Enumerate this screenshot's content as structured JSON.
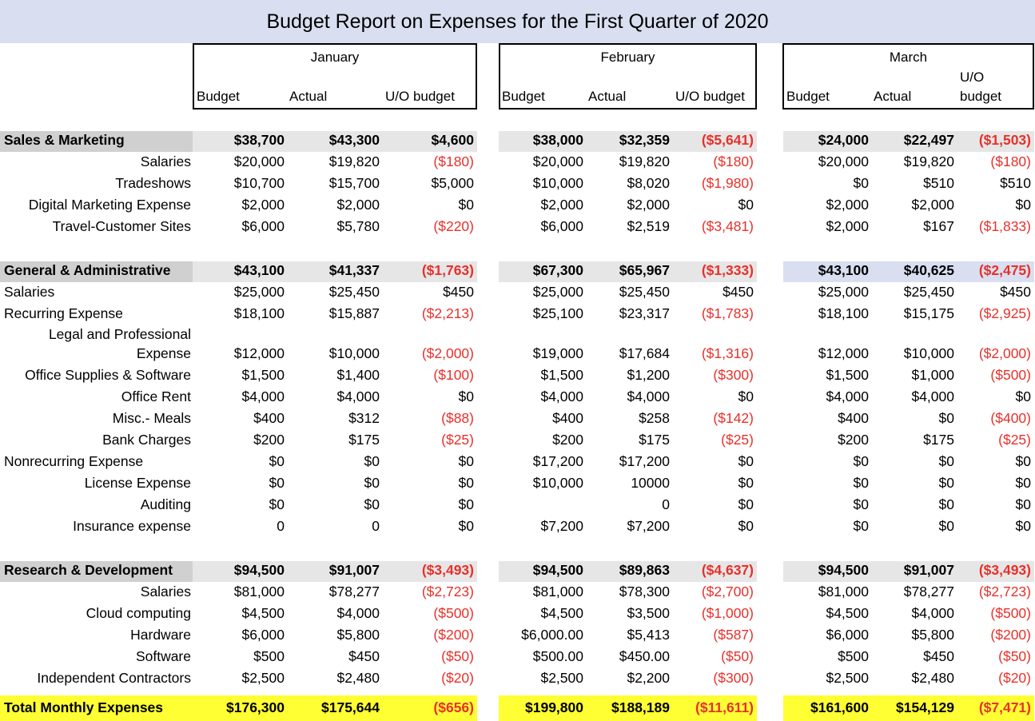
{
  "title": "Budget Report on Expenses for the First Quarter of 2020",
  "colors": {
    "header_bg": "#d9dff0",
    "category_bg": "#e6e6e6",
    "category_label_bg": "#d0d0d0",
    "total_bg": "#ffff33",
    "negative": "#e8302a"
  },
  "months": [
    {
      "name": "January",
      "col_budget": "Budget",
      "col_actual": "Actual",
      "col_uo": "U/O budget"
    },
    {
      "name": "February",
      "col_budget": "Budget",
      "col_actual": "Actual",
      "col_uo": "U/O budget"
    },
    {
      "name": "March",
      "col_budget": "Budget",
      "col_actual": "Actual",
      "col_uo_line1": "U/O",
      "col_uo_line2": "budget"
    }
  ],
  "rows": [
    {
      "label": "Sales & Marketing",
      "type": "category",
      "values": [
        "$38,700",
        "$43,300",
        "$4,600",
        "$38,000",
        "$32,359",
        "($5,641)",
        "$24,000",
        "$22,497",
        "($1,503)"
      ]
    },
    {
      "label": "Salaries",
      "type": "sub",
      "values": [
        "$20,000",
        "$19,820",
        "($180)",
        "$20,000",
        "$19,820",
        "($180)",
        "$20,000",
        "$19,820",
        "($180)"
      ]
    },
    {
      "label": "Tradeshows",
      "type": "sub",
      "values": [
        "$10,700",
        "$15,700",
        "$5,000",
        "$10,000",
        "$8,020",
        "($1,980)",
        "$0",
        "$510",
        "$510"
      ]
    },
    {
      "label": "Digital Marketing Expense",
      "type": "sub",
      "values": [
        "$2,000",
        "$2,000",
        "$0",
        "$2,000",
        "$2,000",
        "$0",
        "$2,000",
        "$2,000",
        "$0"
      ]
    },
    {
      "label": "Travel-Customer Sites",
      "type": "sub",
      "values": [
        "$6,000",
        "$5,780",
        "($220)",
        "$6,000",
        "$2,519",
        "($3,481)",
        "$2,000",
        "$167",
        "($1,833)"
      ]
    },
    {
      "label": "General & Administrative",
      "type": "category",
      "values": [
        "$43,100",
        "$41,337",
        "($1,763)",
        "$67,300",
        "$65,967",
        "($1,333)",
        "$43,100",
        "$40,625",
        "($2,475)"
      ]
    },
    {
      "label": "Salaries",
      "type": "left",
      "values": [
        "$25,000",
        "$25,450",
        "$450",
        "$25,000",
        "$25,450",
        "$450",
        "$25,000",
        "$25,450",
        "$450"
      ]
    },
    {
      "label": "Recurring Expense",
      "type": "left",
      "values": [
        "$18,100",
        "$15,887",
        "($2,213)",
        "$25,100",
        "$23,317",
        "($1,783)",
        "$18,100",
        "$15,175",
        "($2,925)"
      ]
    },
    {
      "label": "Legal and Professional",
      "label2": "Expense",
      "type": "sub2",
      "values": [
        "$12,000",
        "$10,000",
        "($2,000)",
        "$19,000",
        "$17,684",
        "($1,316)",
        "$12,000",
        "$10,000",
        "($2,000)"
      ]
    },
    {
      "label": "Office Supplies & Software",
      "type": "sub",
      "values": [
        "$1,500",
        "$1,400",
        "($100)",
        "$1,500",
        "$1,200",
        "($300)",
        "$1,500",
        "$1,000",
        "($500)"
      ]
    },
    {
      "label": "Office Rent",
      "type": "sub",
      "values": [
        "$4,000",
        "$4,000",
        "$0",
        "$4,000",
        "$4,000",
        "$0",
        "$4,000",
        "$4,000",
        "$0"
      ]
    },
    {
      "label": "Misc.- Meals",
      "type": "sub",
      "values": [
        "$400",
        "$312",
        "($88)",
        "$400",
        "$258",
        "($142)",
        "$400",
        "$0",
        "($400)"
      ]
    },
    {
      "label": "Bank Charges",
      "type": "sub",
      "values": [
        "$200",
        "$175",
        "($25)",
        "$200",
        "$175",
        "($25)",
        "$200",
        "$175",
        "($25)"
      ]
    },
    {
      "label": "Nonrecurring Expense",
      "type": "left",
      "values": [
        "$0",
        "$0",
        "$0",
        "$17,200",
        "$17,200",
        "$0",
        "$0",
        "$0",
        "$0"
      ]
    },
    {
      "label": "License Expense",
      "type": "sub",
      "values": [
        "$0",
        "$0",
        "$0",
        "$10,000",
        "10000",
        "$0",
        "$0",
        "$0",
        "$0"
      ]
    },
    {
      "label": "Auditing",
      "type": "sub",
      "values": [
        "$0",
        "$0",
        "$0",
        "",
        "0",
        "$0",
        "$0",
        "$0",
        "$0"
      ]
    },
    {
      "label": "Insurance expense",
      "type": "sub",
      "values": [
        "0",
        "0",
        "$0",
        "$7,200",
        "$7,200",
        "$0",
        "$0",
        "$0",
        "$0"
      ]
    },
    {
      "label": "Research & Development",
      "type": "category",
      "values": [
        "$94,500",
        "$91,007",
        "($3,493)",
        "$94,500",
        "$89,863",
        "($4,637)",
        "$94,500",
        "$91,007",
        "($3,493)"
      ]
    },
    {
      "label": "Salaries",
      "type": "sub",
      "values": [
        "$81,000",
        "$78,277",
        "($2,723)",
        "$81,000",
        "$78,300",
        "($2,700)",
        "$81,000",
        "$78,277",
        "($2,723)"
      ]
    },
    {
      "label": "Cloud computing",
      "type": "sub",
      "values": [
        "$4,500",
        "$4,000",
        "($500)",
        "$4,500",
        "$3,500",
        "($1,000)",
        "$4,500",
        "$4,000",
        "($500)"
      ]
    },
    {
      "label": "Hardware",
      "type": "sub",
      "values": [
        "$6,000",
        "$5,800",
        "($200)",
        "$6,000.00",
        "$5,413",
        "($587)",
        "$6,000",
        "$5,800",
        "($200)"
      ]
    },
    {
      "label": "Software",
      "type": "sub",
      "values": [
        "$500",
        "$450",
        "($50)",
        "$500.00",
        "$450.00",
        "($50)",
        "$500",
        "$450",
        "($50)"
      ]
    },
    {
      "label": "Independent Contractors",
      "type": "sub",
      "values": [
        "$2,500",
        "$2,480",
        "($20)",
        "$2,500",
        "$2,200",
        "($300)",
        "$2,500",
        "$2,480",
        "($20)"
      ]
    },
    {
      "label": "Total Monthly Expenses",
      "type": "total",
      "values": [
        "$176,300",
        "$175,644",
        "($656)",
        "$199,800",
        "$188,189",
        "($11,611)",
        "$161,600",
        "$154,129",
        "($7,471)"
      ]
    }
  ]
}
